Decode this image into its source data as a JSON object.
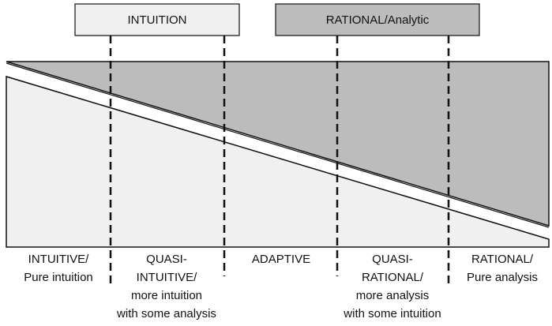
{
  "header": {
    "left": "INTUITION",
    "right": "RATIONAL/Analytic"
  },
  "columns": [
    {
      "lines": [
        "INTUITIVE/",
        "Pure intuition"
      ]
    },
    {
      "lines": [
        "QUASI-",
        "INTUITIVE/",
        "more intuition",
        "with some analysis"
      ]
    },
    {
      "lines": [
        "ADAPTIVE"
      ]
    },
    {
      "lines": [
        "QUASI-",
        "RATIONAL/",
        "more analysis",
        "with some intuition"
      ]
    },
    {
      "lines": [
        "RATIONAL/",
        "Pure analysis"
      ]
    }
  ]
}
